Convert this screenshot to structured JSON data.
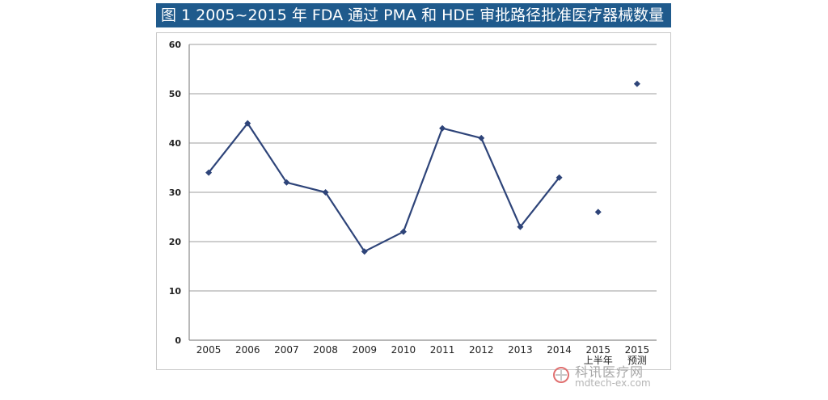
{
  "chart_data": {
    "type": "line",
    "title": "图 1  2005~2015 年 FDA 通过 PMA 和 HDE 审批路径批准医疗器械数量",
    "xlabel": "",
    "ylabel": "",
    "categories": [
      "2005",
      "2006",
      "2007",
      "2008",
      "2009",
      "2010",
      "2011",
      "2012",
      "2013",
      "2014",
      "2015 上半年",
      "2015 预测"
    ],
    "category_lines": [
      [
        "2005"
      ],
      [
        "2006"
      ],
      [
        "2007"
      ],
      [
        "2008"
      ],
      [
        "2009"
      ],
      [
        "2010"
      ],
      [
        "2011"
      ],
      [
        "2012"
      ],
      [
        "2013"
      ],
      [
        "2014"
      ],
      [
        "2015",
        "上半年"
      ],
      [
        "2015",
        "预测"
      ]
    ],
    "series": [
      {
        "values": [
          34,
          44,
          32,
          30,
          18,
          22,
          43,
          41,
          23,
          33,
          26,
          52
        ],
        "connected_through_index": 9
      }
    ],
    "ylim": [
      0,
      60
    ],
    "yticks": [
      0,
      10,
      20,
      30,
      40,
      50,
      60
    ],
    "grid": true,
    "legend": "none",
    "colors": {
      "line": "#2e4479",
      "marker": "#2e4479",
      "grid": "#bdbdbd",
      "title_bg": "#1f5a8c"
    }
  },
  "watermark": {
    "site_name": "科讯医疗网",
    "url": "mdtech-ex.com"
  }
}
